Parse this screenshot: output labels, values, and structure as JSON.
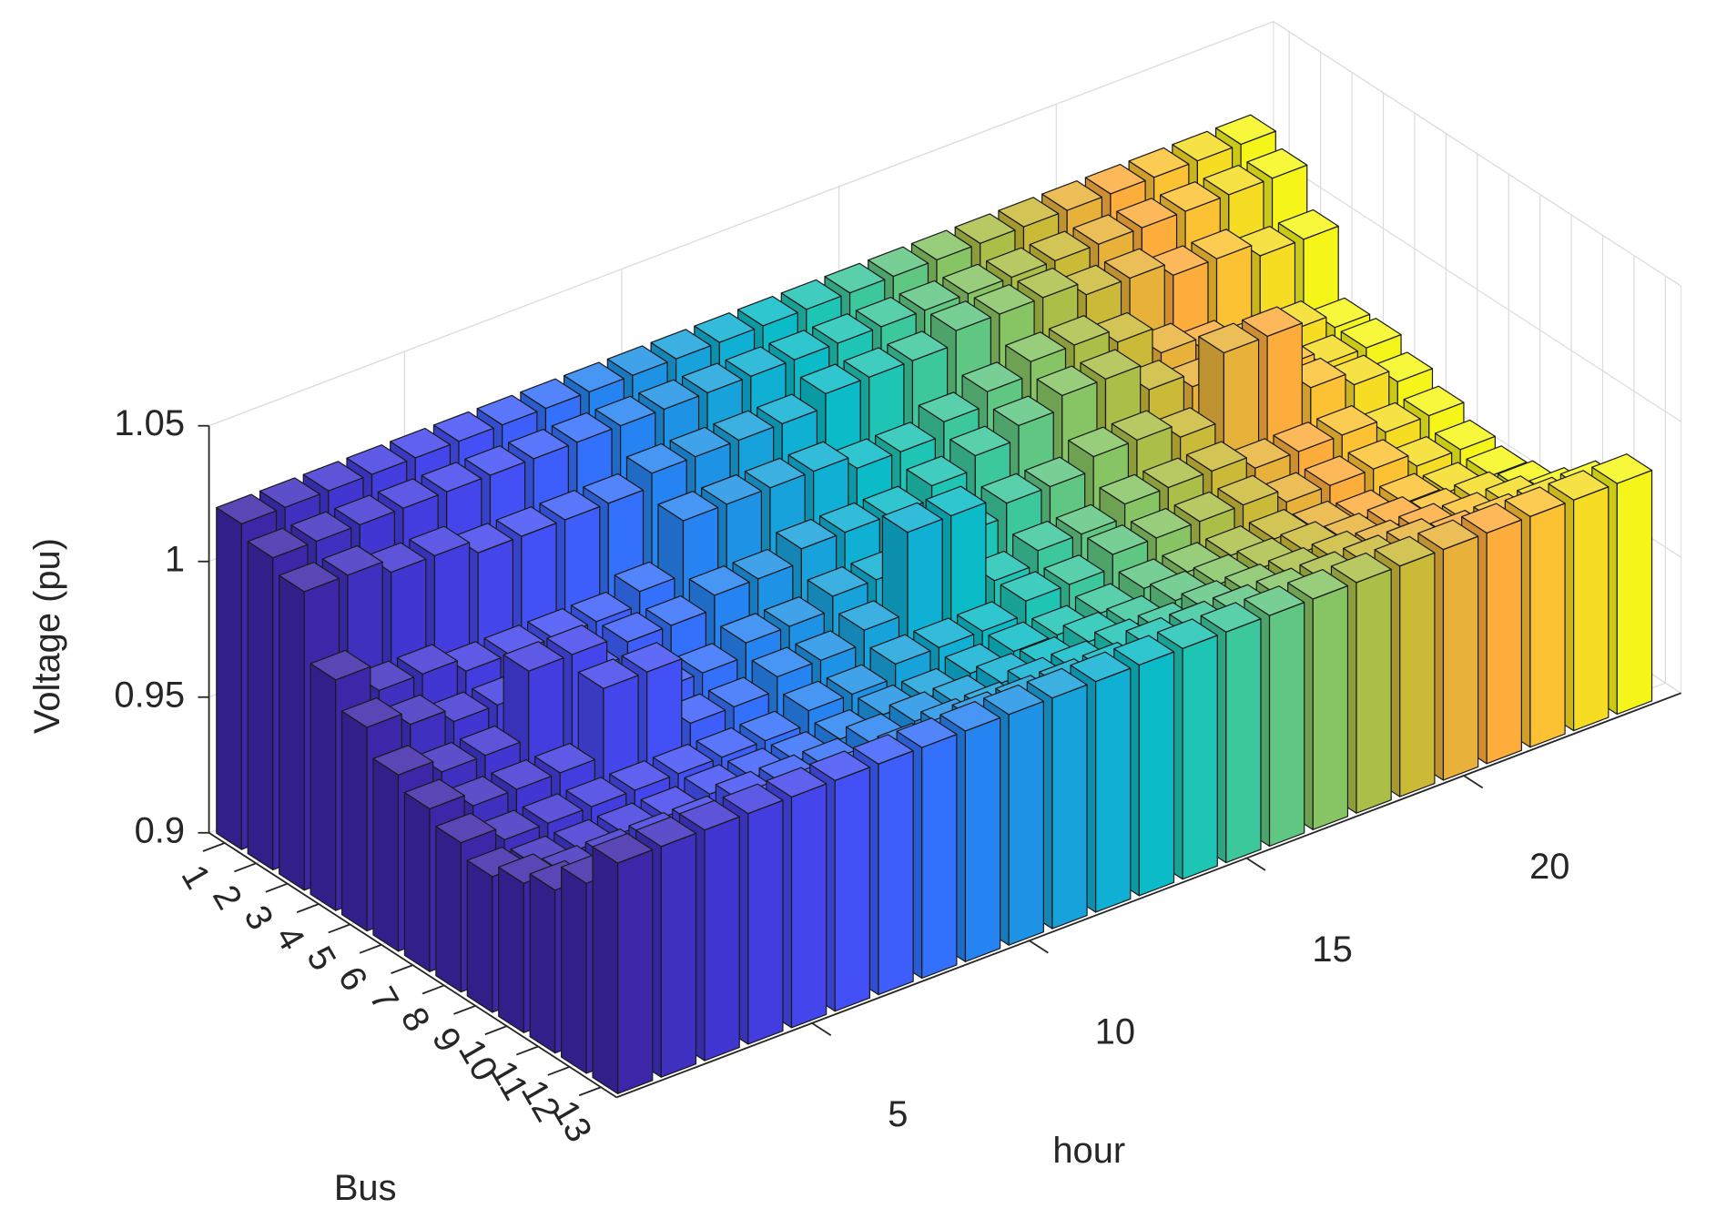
{
  "chart_data": {
    "type": "bar3",
    "zlabel": "Voltage (pu)",
    "xlabel": "hour",
    "ylabel": "Bus",
    "x": [
      1,
      2,
      3,
      4,
      5,
      6,
      7,
      8,
      9,
      10,
      11,
      12,
      13,
      14,
      15,
      16,
      17,
      18,
      19,
      20,
      21,
      22,
      23,
      24
    ],
    "y": [
      1,
      2,
      3,
      4,
      5,
      6,
      7,
      8,
      9,
      10,
      11,
      12,
      13
    ],
    "xlim": [
      0.5,
      25
    ],
    "xticks": [
      5,
      10,
      15,
      20
    ],
    "ylim": [
      0.5,
      13.5
    ],
    "yticks": [
      1,
      2,
      3,
      4,
      5,
      6,
      7,
      8,
      9,
      10,
      11,
      12,
      13
    ],
    "zlim": [
      0.9,
      1.05
    ],
    "zticks": [
      0.9,
      0.95,
      1,
      1.05
    ],
    "grid": true,
    "colors": [
      "#3d26a8",
      "#4030c0",
      "#4136d2",
      "#433de0",
      "#4545ec",
      "#4350f5",
      "#3d5efa",
      "#3370fb",
      "#2683f2",
      "#1e93e6",
      "#18a2dc",
      "#0fb0d4",
      "#0bbcc8",
      "#1ec4b4",
      "#3cc79c",
      "#5fc782",
      "#86c464",
      "#abbf48",
      "#cbba38",
      "#e8b23a",
      "#fdad3c",
      "#fcc233",
      "#f6dd24",
      "#f6f51a"
    ],
    "values": [
      [
        1.02,
        1.02,
        1.02,
        1.02,
        1.02,
        1.02,
        1.02,
        1.02,
        1.02,
        1.02,
        1.02,
        1.02,
        1.02,
        1.02,
        1.02,
        1.02,
        1.02,
        1.02,
        1.02,
        1.02,
        1.02,
        1.02,
        1.02,
        1.02
      ],
      [
        1.015,
        1.015,
        1.015,
        1.015,
        1.015,
        1.015,
        1.015,
        1.015,
        1.015,
        1.015,
        1.015,
        1.015,
        1.015,
        1.015,
        1.015,
        1.015,
        1.015,
        1.015,
        1.015,
        1.015,
        1.015,
        1.015,
        1.015,
        1.015
      ],
      [
        1.01,
        1.01,
        1.005,
        1.005,
        1,
        1,
        1,
        1,
        1.005,
        1.005,
        1.005,
        1.005,
        1.01,
        1.01,
        1.01,
        1.015,
        1.015,
        1.015,
        1.01,
        1.01,
        1.005,
        1.005,
        1,
        1
      ],
      [
        0.985,
        0.975,
        0.975,
        0.97,
        0.97,
        0.97,
        0.97,
        0.975,
        0.995,
        0.995,
        0.995,
        0.995,
        0.99,
        0.99,
        0.995,
        1,
        1.005,
        1.005,
        1,
        0.99,
        0.985,
        0.98,
        0.98,
        0.975
      ],
      [
        0.975,
        0.97,
        0.965,
        0.965,
        0.965,
        0.965,
        0.97,
        0.97,
        0.975,
        0.975,
        0.98,
        0.98,
        0.98,
        0.985,
        0.99,
        0.995,
        1,
        1,
        0.99,
        0.985,
        0.98,
        0.98,
        0.975,
        0.975
      ],
      [
        0.965,
        0.96,
        0.96,
        0.985,
        0.985,
        0.96,
        0.96,
        0.96,
        0.965,
        0.965,
        0.97,
        0.97,
        0.975,
        0.975,
        0.98,
        0.98,
        0.985,
        0.985,
        0.98,
        1.005,
        1.005,
        0.98,
        0.975,
        0.97
      ],
      [
        0.96,
        0.955,
        0.955,
        0.955,
        0.98,
        0.98,
        0.955,
        0.955,
        0.96,
        0.96,
        0.965,
        0.995,
        0.995,
        0.965,
        0.97,
        0.97,
        0.975,
        0.975,
        0.975,
        0.97,
        0.97,
        0.97,
        0.965,
        0.965
      ],
      [
        0.955,
        0.95,
        0.95,
        0.95,
        0.95,
        0.95,
        0.95,
        0.95,
        0.955,
        0.955,
        0.96,
        0.96,
        0.96,
        0.965,
        0.965,
        0.97,
        0.97,
        0.97,
        0.97,
        0.965,
        0.965,
        0.965,
        0.96,
        0.96
      ],
      [
        0.95,
        0.948,
        0.948,
        0.948,
        0.948,
        0.95,
        0.95,
        0.95,
        0.952,
        0.955,
        0.955,
        0.958,
        0.96,
        0.96,
        0.962,
        0.965,
        0.965,
        0.965,
        0.965,
        0.962,
        0.96,
        0.96,
        0.958,
        0.958
      ],
      [
        0.955,
        0.952,
        0.952,
        0.952,
        0.952,
        0.955,
        0.955,
        0.955,
        0.958,
        0.96,
        0.96,
        0.962,
        0.962,
        0.965,
        0.965,
        0.968,
        0.968,
        0.968,
        0.968,
        0.965,
        0.965,
        0.962,
        0.962,
        0.96
      ],
      [
        0.96,
        0.958,
        0.958,
        0.958,
        0.958,
        0.96,
        0.96,
        0.96,
        0.962,
        0.965,
        0.965,
        0.968,
        0.968,
        0.97,
        0.97,
        0.972,
        0.972,
        0.972,
        0.972,
        0.97,
        0.97,
        0.968,
        0.968,
        0.965
      ],
      [
        0.97,
        0.968,
        0.968,
        0.968,
        0.968,
        0.97,
        0.97,
        0.97,
        0.972,
        0.975,
        0.975,
        0.975,
        0.975,
        0.978,
        0.978,
        0.978,
        0.978,
        0.978,
        0.978,
        0.978,
        0.975,
        0.975,
        0.975,
        0.975
      ],
      [
        0.985,
        0.985,
        0.985,
        0.985,
        0.985,
        0.985,
        0.985,
        0.985,
        0.985,
        0.985,
        0.985,
        0.985,
        0.985,
        0.985,
        0.985,
        0.985,
        0.985,
        0.985,
        0.985,
        0.985,
        0.985,
        0.985,
        0.985,
        0.985
      ]
    ]
  }
}
